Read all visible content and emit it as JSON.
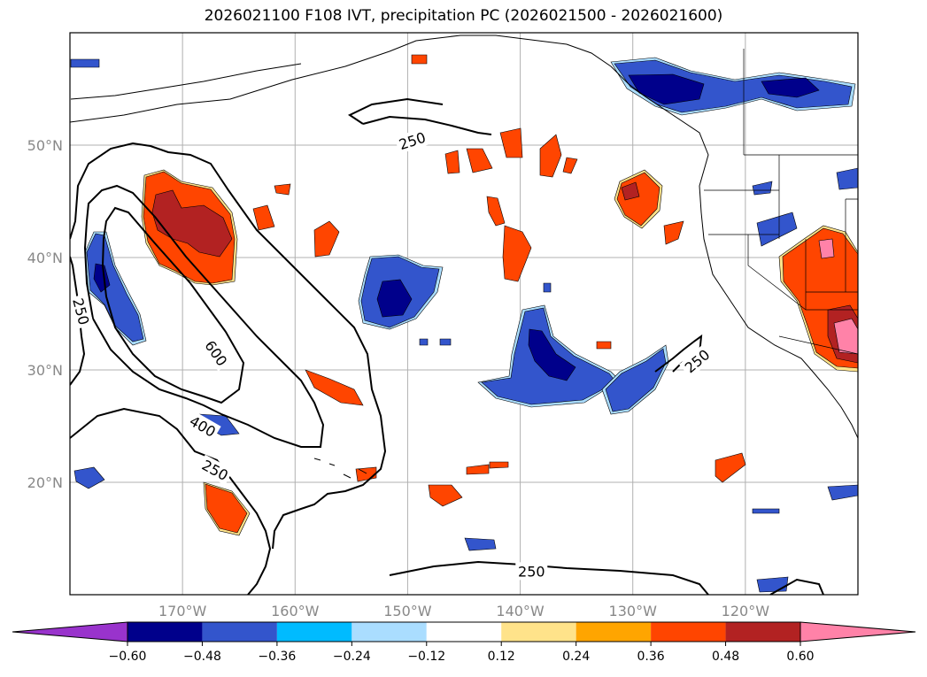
{
  "title": "2026021100 F108 IVT, precipitation PC (2026021500 - 2026021600)",
  "map": {
    "lon_range": [
      -180,
      -110
    ],
    "lat_range": [
      10,
      60
    ],
    "lat_ticks": [
      {
        "value": 50,
        "label": "50°N"
      },
      {
        "value": 40,
        "label": "40°N"
      },
      {
        "value": 30,
        "label": "30°N"
      },
      {
        "value": 20,
        "label": "20°N"
      }
    ],
    "lon_ticks": [
      {
        "value": -170,
        "label": "170°W"
      },
      {
        "value": -160,
        "label": "160°W"
      },
      {
        "value": -150,
        "label": "150°W"
      },
      {
        "value": -140,
        "label": "140°W"
      },
      {
        "value": -130,
        "label": "130°W"
      },
      {
        "value": -120,
        "label": "120°W"
      }
    ],
    "grid": true,
    "contour_labels": [
      {
        "text": "250",
        "lon": -149.6,
        "lat": 50.4,
        "angle": -18
      },
      {
        "text": "250",
        "lon": -179.0,
        "lat": 35.2,
        "angle": 75
      },
      {
        "text": "600",
        "lon": -167.0,
        "lat": 31.5,
        "angle": 55
      },
      {
        "text": "400",
        "lon": -168.2,
        "lat": 25.0,
        "angle": 30
      },
      {
        "text": "250",
        "lon": -167.1,
        "lat": 21.1,
        "angle": 28
      },
      {
        "text": "250",
        "lon": -124.3,
        "lat": 30.8,
        "angle": -40
      },
      {
        "text": "250",
        "lon": -139.0,
        "lat": 12.1,
        "angle": 0
      }
    ]
  },
  "colorbar": {
    "levels": [
      "−0.60",
      "−0.48",
      "−0.36",
      "−0.24",
      "−0.12",
      "0.12",
      "0.24",
      "0.36",
      "0.48",
      "0.60"
    ],
    "colors": [
      "#9933cc",
      "#00008b",
      "#3355cc",
      "#00bbff",
      "#aaddff",
      "#ffffff",
      "#ffe38a",
      "#ffa500",
      "#ff4500",
      "#b22222",
      "#ff82a8"
    ]
  },
  "colors": {
    "strong_negative": "#00008b",
    "negative": "#3355cc",
    "weak_negative": "#00bbff",
    "faint_negative": "#aaddff",
    "faint_positive": "#ffe38a",
    "weak_positive": "#ffa500",
    "positive": "#ff4500",
    "strong_positive": "#b22222",
    "extreme_positive": "#ff82a8"
  }
}
